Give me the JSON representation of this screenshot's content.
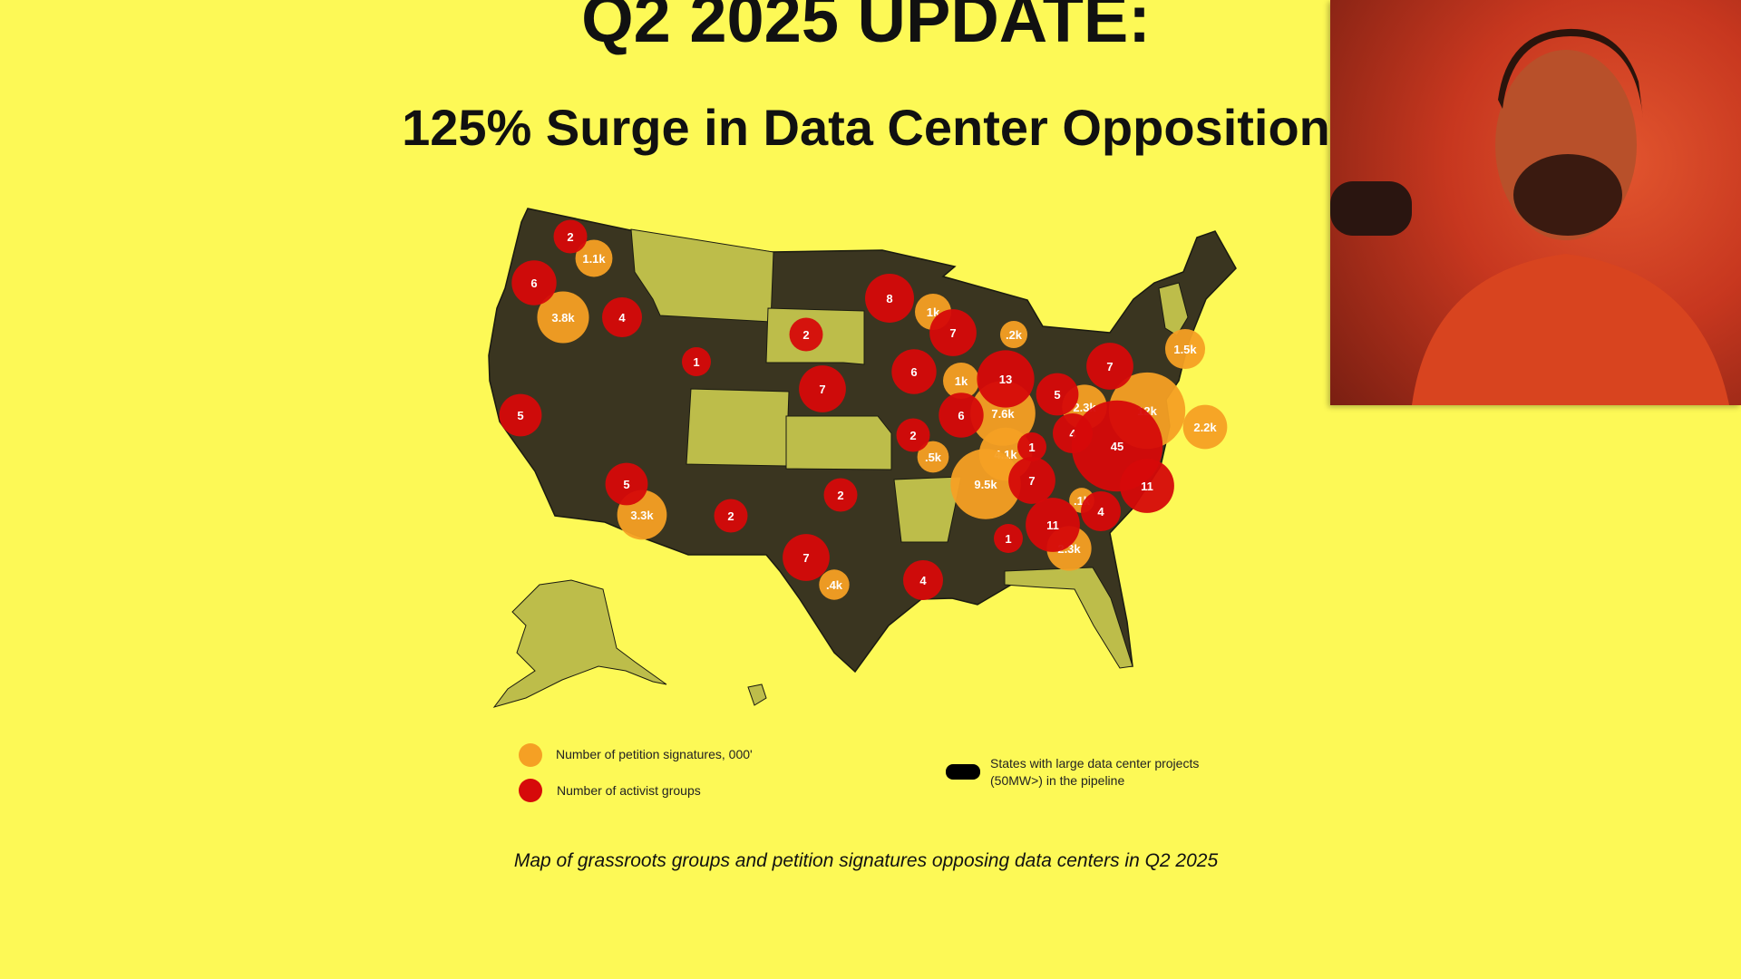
{
  "header": {
    "title": "Q2 2025 UPDATE:",
    "subtitle": "125% Surge in Data Center Opposition"
  },
  "legend": {
    "petitions": "Number of petition signatures, 000'",
    "groups": "Number of activist groups",
    "states_line1": "States with large data center projects",
    "states_line2": "(50MW>) in the pipeline"
  },
  "caption": "Map of grassroots groups and petition signatures opposing data centers in Q2 2025",
  "colors": {
    "background": "#fdf956",
    "petitions": "#f5a024",
    "groups": "#d60a0a",
    "pipeline_states": "#3a3520",
    "other_states": "#bdbd4a"
  },
  "webcam": {
    "description_icon": "presenter-webcam"
  },
  "chart_data": {
    "type": "bubble-map",
    "series": [
      {
        "name": "Number of activist groups",
        "values": [
          {
            "label": "2"
          },
          {
            "label": "6"
          },
          {
            "label": "4"
          },
          {
            "label": "1"
          },
          {
            "label": "2"
          },
          {
            "label": "8"
          },
          {
            "label": "7"
          },
          {
            "label": "6"
          },
          {
            "label": "13"
          },
          {
            "label": "7"
          },
          {
            "label": "5"
          },
          {
            "label": "6"
          },
          {
            "label": "5"
          },
          {
            "label": "7"
          },
          {
            "label": "4"
          },
          {
            "label": "45"
          },
          {
            "label": "2"
          },
          {
            "label": "1"
          },
          {
            "label": "7"
          },
          {
            "label": "11"
          },
          {
            "label": "4"
          },
          {
            "label": "11"
          },
          {
            "label": "1"
          },
          {
            "label": "5"
          },
          {
            "label": "2"
          },
          {
            "label": "2"
          },
          {
            "label": "7"
          },
          {
            "label": "4"
          }
        ]
      },
      {
        "name": "Number of petition signatures, 000'",
        "values": [
          {
            "label": "1.1k"
          },
          {
            "label": "3.8k"
          },
          {
            "label": "1k"
          },
          {
            "label": ".2k"
          },
          {
            "label": "1k"
          },
          {
            "label": "7.6k"
          },
          {
            "label": "2.3k"
          },
          {
            "label": "1.5k"
          },
          {
            "label": "12k"
          },
          {
            "label": "2.2k"
          },
          {
            "label": ".5k"
          },
          {
            "label": "4.1k"
          },
          {
            "label": "9.5k"
          },
          {
            "label": ".1k"
          },
          {
            "label": "2.3k"
          },
          {
            "label": "3.3k"
          },
          {
            "label": ".4k"
          }
        ]
      }
    ]
  }
}
